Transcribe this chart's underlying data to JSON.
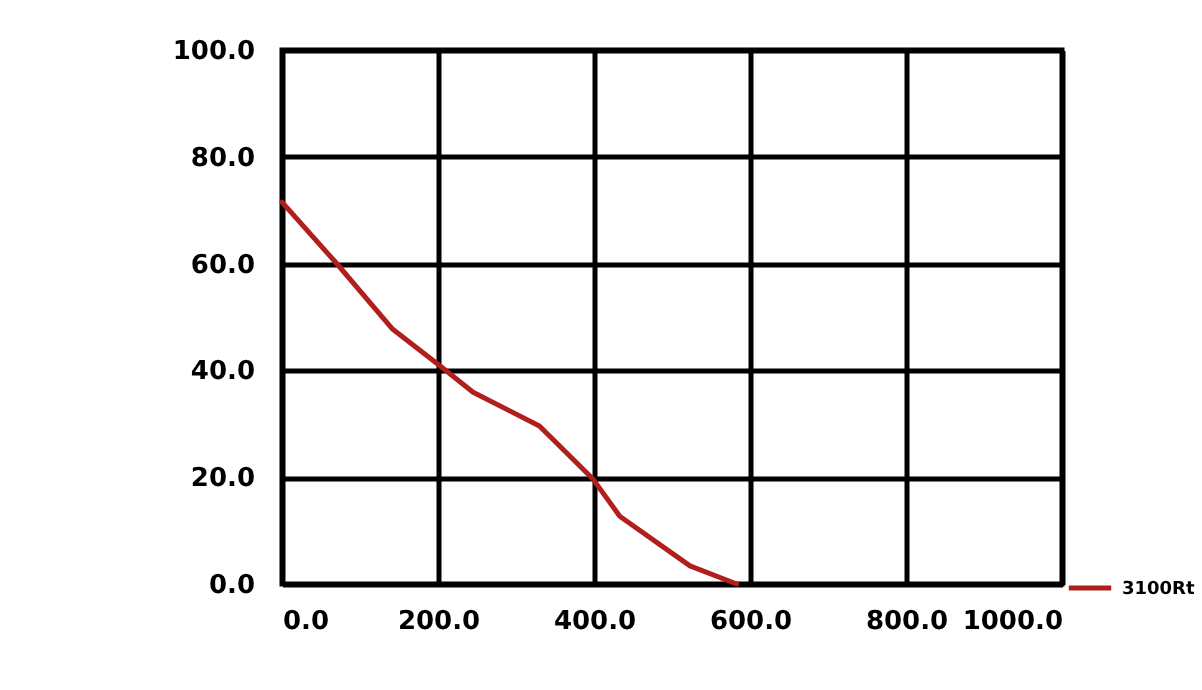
{
  "chart_data": {
    "type": "line",
    "x": [
      0,
      69,
      142,
      202,
      245,
      330,
      399,
      433,
      523,
      583
    ],
    "series": [
      {
        "name": "3100Rt",
        "color": "#b01e1e",
        "values": [
          71.5,
          60.2,
          47.7,
          40.9,
          35.9,
          29.6,
          19.6,
          12.7,
          3.4,
          0
        ]
      }
    ],
    "xlim": [
      0,
      1000
    ],
    "ylim": [
      0,
      100
    ],
    "xticks": [
      {
        "value": 0,
        "label": "0.0"
      },
      {
        "value": 200,
        "label": "200.0"
      },
      {
        "value": 400,
        "label": "400.0"
      },
      {
        "value": 600,
        "label": "600.0"
      },
      {
        "value": 800,
        "label": "800.0"
      },
      {
        "value": 1000,
        "label": "1000.0"
      }
    ],
    "yticks": [
      {
        "value": 0,
        "label": "0.0"
      },
      {
        "value": 20,
        "label": "20.0"
      },
      {
        "value": 40,
        "label": "40.0"
      },
      {
        "value": 60,
        "label": "60.0"
      },
      {
        "value": 80,
        "label": "80.0"
      },
      {
        "value": 100,
        "label": "100.0"
      }
    ],
    "grid": true,
    "legend": "bottom right",
    "marker": "none",
    "line_style": "solid"
  }
}
